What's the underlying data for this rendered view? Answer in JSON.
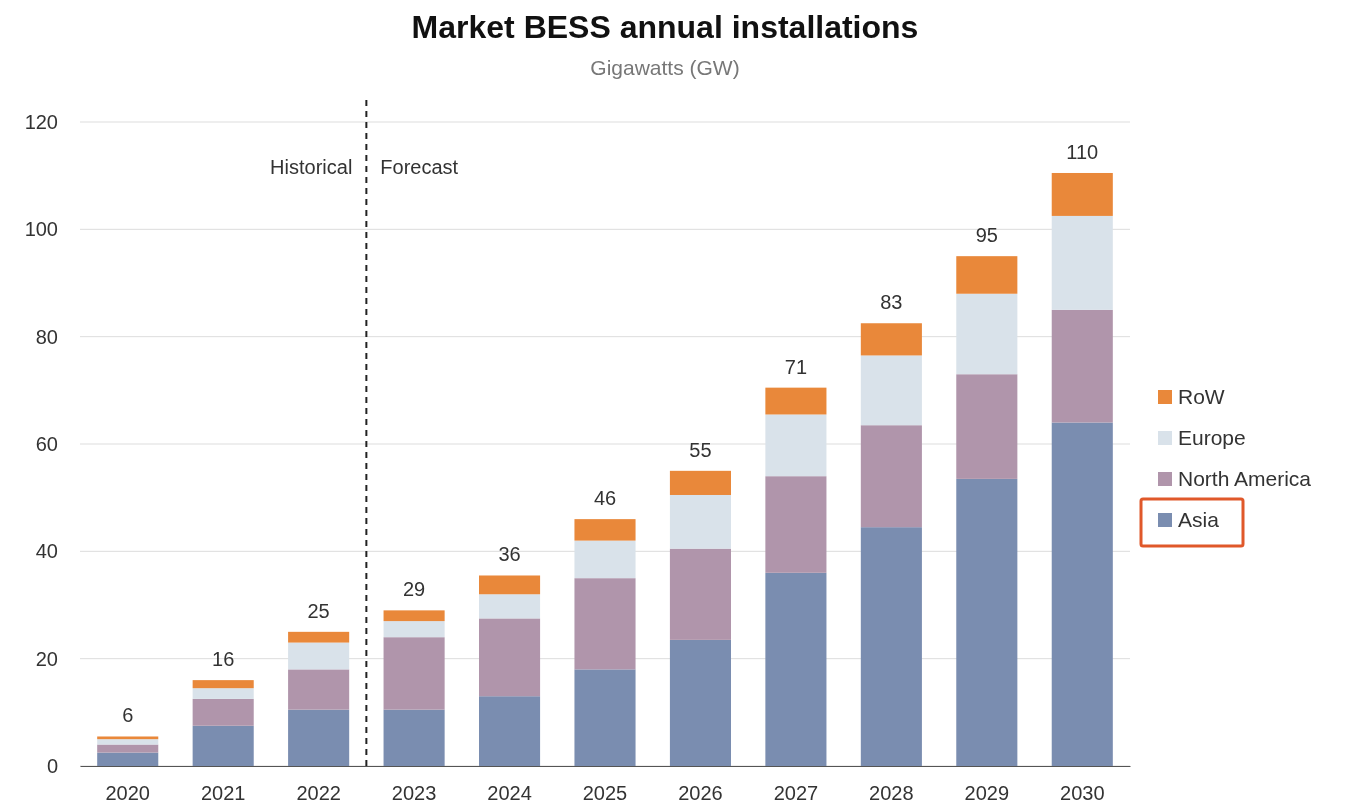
{
  "chart_data": {
    "type": "bar",
    "title": "Market BESS annual installations",
    "subtitle": "Gigawatts (GW)",
    "categories": [
      "2020",
      "2021",
      "2022",
      "2023",
      "2024",
      "2025",
      "2026",
      "2027",
      "2028",
      "2029",
      "2030"
    ],
    "series": [
      {
        "name": "Asia",
        "color": "#7a8db0",
        "values": [
          2.5,
          7.5,
          10.5,
          10.5,
          13,
          18,
          23.5,
          36,
          44.5,
          53.5,
          64
        ]
      },
      {
        "name": "North America",
        "color": "#b095ab",
        "values": [
          1.5,
          5,
          7.5,
          13.5,
          14.5,
          17,
          17,
          18,
          19,
          19.5,
          21
        ]
      },
      {
        "name": "Europe",
        "color": "#d9e2ea",
        "values": [
          1,
          2,
          5,
          3,
          4.5,
          7,
          10,
          11.5,
          13,
          15,
          17.5
        ]
      },
      {
        "name": "RoW",
        "color": "#e9883a",
        "values": [
          0.5,
          1.5,
          2,
          2,
          3.5,
          4,
          4.5,
          5,
          6,
          7,
          8
        ]
      }
    ],
    "stacked": true,
    "totals": [
      "6",
      "16",
      "25",
      "29",
      "36",
      "46",
      "55",
      "71",
      "83",
      "95",
      "110"
    ],
    "ylim": [
      0,
      120
    ],
    "yticks": [
      0,
      20,
      40,
      60,
      80,
      100,
      120
    ],
    "grid": "y",
    "legend": "right",
    "ref_lines": [
      {
        "axis": "x",
        "value": "2023",
        "line_style": "dashed",
        "color": "#222222"
      }
    ],
    "annotations": [
      "Historical",
      "Forecast"
    ]
  }
}
